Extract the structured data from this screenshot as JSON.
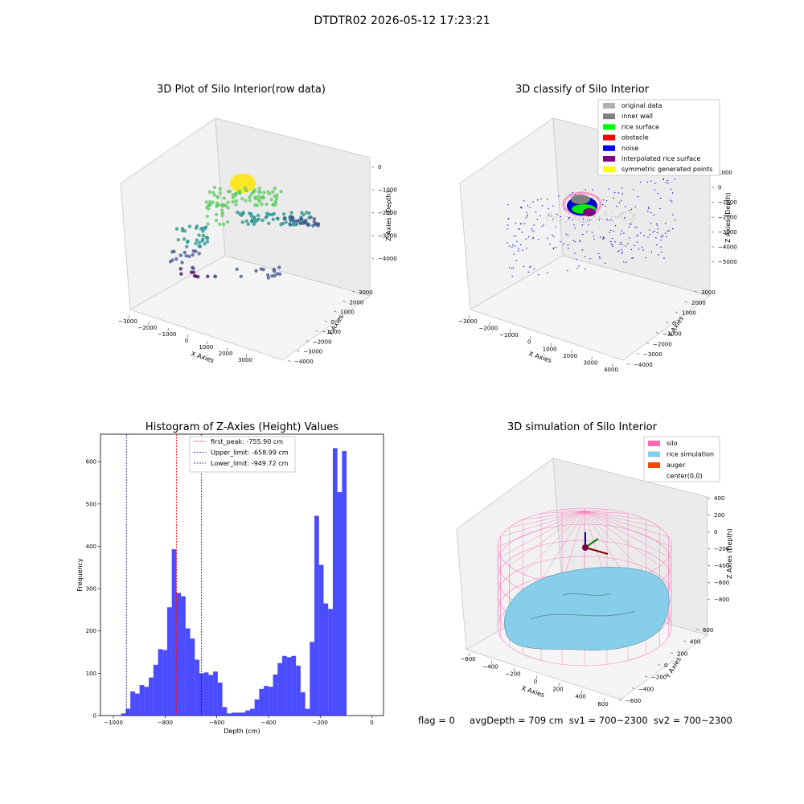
{
  "suptitle": "DTDTR02 2026-05-12 17:23:21",
  "colors": {
    "histogram_bar": "#0000ff",
    "first_peak_line": "#ff0000",
    "limit_lines": "#00008b",
    "silo": "#ff69b4",
    "rice_simulation": "#87ceeb",
    "auger": "#ff4500",
    "viridis": [
      "#440154",
      "#3b528b",
      "#21918c",
      "#5ec962",
      "#fde725"
    ]
  },
  "panels": {
    "raw": {
      "title": "3D Plot of Silo Interior(row data)",
      "x_label": "X Axies",
      "y_label": "Y Axies",
      "z_label": "Z Axies (Depth)",
      "x_ticks": [
        "−3000",
        "−2000",
        "−1000",
        "0",
        "1000",
        "2000",
        "3000"
      ],
      "y_ticks": [
        "−4000",
        "−3000",
        "−2000",
        "−1000",
        "0",
        "1000",
        "2000",
        "3000"
      ],
      "z_ticks": [
        "0",
        "−1000",
        "−2000",
        "−3000",
        "−4000"
      ]
    },
    "classify": {
      "title": "3D classify of Silo Interior",
      "x_label": "X Axies",
      "y_label": "Y Axies",
      "z_label": "Z Axies (Depth)",
      "x_ticks": [
        "−3000",
        "−2000",
        "−1000",
        "0",
        "1000",
        "2000",
        "3000",
        "4000"
      ],
      "y_ticks": [
        "−4000",
        "−3000",
        "−2000",
        "−1000",
        "0",
        "1000",
        "2000",
        "3000"
      ],
      "z_ticks": [
        "1000",
        "0",
        "−1000",
        "−2000",
        "−3000",
        "−4000",
        "−5000"
      ],
      "legend": [
        {
          "label": "original data",
          "color": "#b0b0b0"
        },
        {
          "label": "inner wall",
          "color": "#808080"
        },
        {
          "label": "rice surface",
          "color": "#00ff00"
        },
        {
          "label": "obstacle",
          "color": "#ff0000"
        },
        {
          "label": "noise",
          "color": "#0000ff"
        },
        {
          "label": "interpolated rice surface",
          "color": "#800080"
        },
        {
          "label": "symmetric generated points",
          "color": "#ffff00"
        }
      ]
    },
    "simulation": {
      "title": "3D simulation of Silo Interior",
      "x_label": "X Axies",
      "y_label": "Y Axies",
      "z_label": "Z Axies (Depth)",
      "x_ticks": [
        "−600",
        "−400",
        "−200",
        "0",
        "200",
        "400",
        "600"
      ],
      "y_ticks": [
        "−600",
        "−400",
        "−200",
        "0",
        "200",
        "400",
        "600"
      ],
      "z_ticks": [
        "400",
        "200",
        "0",
        "−200",
        "−400",
        "−600",
        "−800"
      ],
      "legend": [
        {
          "label": "silo",
          "color": "#ff69b4"
        },
        {
          "label": "rice simulation",
          "color": "#87ceeb"
        },
        {
          "label": "auger",
          "color": "#ff4500"
        },
        {
          "label": "center(0,0)",
          "color": ""
        }
      ]
    }
  },
  "footer": {
    "flag": "flag = 0",
    "avg_depth": "avgDepth = 709 cm",
    "sv1": "sv1 = 700~2300",
    "sv2": "sv2 = 700~2300"
  },
  "chart_data": [
    {
      "type": "histogram",
      "title": "Histogram of Z-Axies (Height) Values",
      "xlabel": "Depth (cm)",
      "ylabel": "Frequency",
      "xlim": [
        -1050,
        45
      ],
      "ylim": [
        0,
        665
      ],
      "x_ticks": [
        -1000,
        -800,
        -600,
        -400,
        -200,
        0
      ],
      "y_ticks": [
        0,
        100,
        200,
        300,
        400,
        500,
        600
      ],
      "bin_start": -970,
      "bin_width": 17.8,
      "counts": [
        5,
        16,
        57,
        52,
        72,
        68,
        90,
        120,
        157,
        155,
        256,
        393,
        290,
        282,
        206,
        182,
        132,
        100,
        102,
        96,
        104,
        78,
        20,
        5,
        7,
        7,
        7,
        12,
        16,
        38,
        63,
        70,
        68,
        97,
        124,
        141,
        138,
        141,
        118,
        55,
        16,
        174,
        472,
        356,
        265,
        252,
        632,
        528,
        625
      ],
      "vlines": [
        {
          "label": "first_peak: -755.90 cm",
          "x": -755.9,
          "color": "#ff0000"
        },
        {
          "label": "Upper_limit: -658.99 cm",
          "x": -658.99,
          "color": "#00008b"
        },
        {
          "label": "Lower_limit: -949.72 cm",
          "x": -949.72,
          "color": "#00008b"
        }
      ],
      "legend_position": "upper center"
    }
  ]
}
